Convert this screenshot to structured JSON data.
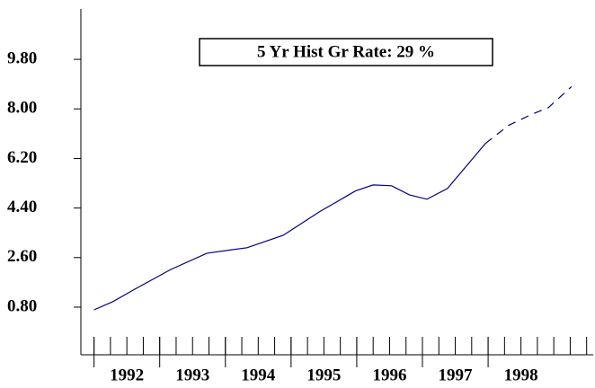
{
  "chart_data": {
    "type": "line",
    "annotation": "5 Yr Hist Gr Rate: 29 %",
    "xlim": [
      1991.8,
      1999.6
    ],
    "xticks": [
      {
        "value": 1992,
        "label": "1992"
      },
      {
        "value": 1993,
        "label": "1993"
      },
      {
        "value": 1994,
        "label": "1994"
      },
      {
        "value": 1995,
        "label": "1995"
      },
      {
        "value": 1996,
        "label": "1996"
      },
      {
        "value": 1997,
        "label": "1997"
      },
      {
        "value": 1998,
        "label": "1998"
      }
    ],
    "ylim": [
      -0.93,
      11.63
    ],
    "yticks": [
      {
        "value": 0.8,
        "label": "0.80"
      },
      {
        "value": 2.6,
        "label": "2.60"
      },
      {
        "value": 4.4,
        "label": "4.40"
      },
      {
        "value": 6.2,
        "label": "6.20"
      },
      {
        "value": 8,
        "label": "8.00"
      },
      {
        "value": 9.8,
        "label": "9.80"
      }
    ],
    "series": [
      {
        "color": "#000080",
        "dashed": false,
        "x": [
          1992.0,
          1992.28,
          1992.62,
          1993.17,
          1993.72,
          1994.33,
          1994.88,
          1995.43,
          1995.98,
          1996.25,
          1996.53,
          1996.8,
          1997.07,
          1997.38,
          1997.96
        ],
        "values": [
          0.7,
          0.99,
          1.45,
          2.17,
          2.76,
          2.96,
          3.41,
          4.26,
          5.02,
          5.24,
          5.21,
          4.88,
          4.72,
          5.11,
          6.75
        ]
      },
      {
        "color": "#000080",
        "dashed": true,
        "x": [
          1997.96,
          1998.31,
          1998.65,
          1998.92,
          1999.27
        ],
        "values": [
          6.75,
          7.4,
          7.79,
          8.05,
          8.81
        ]
      }
    ]
  }
}
